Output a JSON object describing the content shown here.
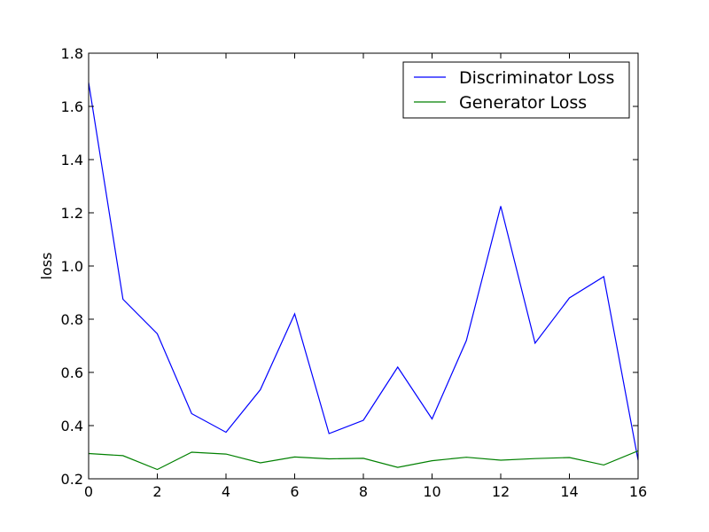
{
  "chart_data": {
    "type": "line",
    "title": "",
    "xlabel": "",
    "ylabel": "loss",
    "xlim": [
      0,
      16
    ],
    "ylim": [
      0.2,
      1.8
    ],
    "xticks": [
      0,
      2,
      4,
      6,
      8,
      10,
      12,
      14,
      16
    ],
    "yticks": [
      0.2,
      0.4,
      0.6,
      0.8,
      1.0,
      1.2,
      1.4,
      1.6,
      1.8
    ],
    "grid": false,
    "legend_position": "top-right",
    "x": [
      0,
      1,
      2,
      3,
      4,
      5,
      6,
      7,
      8,
      9,
      10,
      11,
      12,
      13,
      14,
      15,
      16
    ],
    "series": [
      {
        "name": "Discriminator Loss",
        "color": "#0000ff",
        "values": [
          1.69,
          0.875,
          0.745,
          0.445,
          0.375,
          0.535,
          0.82,
          0.37,
          0.42,
          0.62,
          0.425,
          0.72,
          1.225,
          0.71,
          0.88,
          0.96,
          0.27
        ]
      },
      {
        "name": "Generator Loss",
        "color": "#008000",
        "values": [
          0.295,
          0.287,
          0.235,
          0.3,
          0.293,
          0.26,
          0.282,
          0.275,
          0.277,
          0.243,
          0.268,
          0.281,
          0.27,
          0.276,
          0.28,
          0.252,
          0.305
        ]
      }
    ]
  }
}
